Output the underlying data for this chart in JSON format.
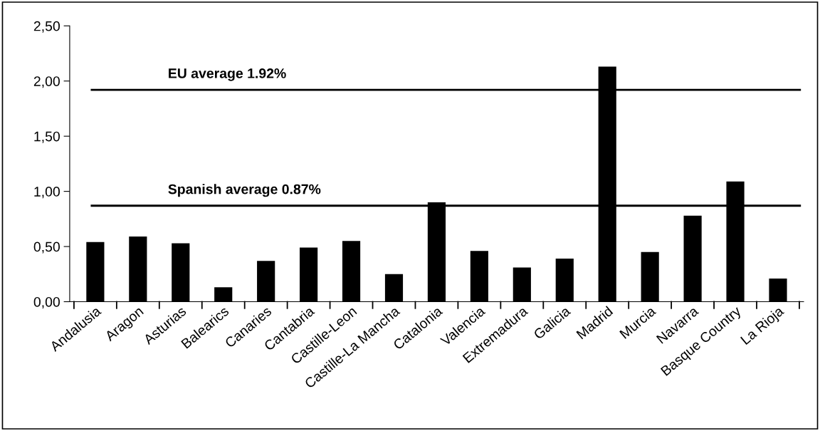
{
  "chart_data": {
    "type": "bar",
    "categories": [
      "Andalusia",
      "Aragon",
      "Asturias",
      "Balearics",
      "Canaries",
      "Cantabria",
      "Castille-Leon",
      "Castille-La Mancha",
      "Catalonia",
      "Valencia",
      "Extremadura",
      "Galicia",
      "Madrid",
      "Murcia",
      "Navarra",
      "Basque Country",
      "La Rioja"
    ],
    "values": [
      0.54,
      0.59,
      0.53,
      0.13,
      0.37,
      0.49,
      0.55,
      0.25,
      0.9,
      0.46,
      0.31,
      0.39,
      2.13,
      0.45,
      0.78,
      1.09,
      0.21
    ],
    "color": "#000000",
    "ylim": [
      0,
      2.5
    ],
    "yticks": [
      {
        "value": 0,
        "label": "0,00"
      },
      {
        "value": 0.5,
        "label": "0,50"
      },
      {
        "value": 1,
        "label": "1,00"
      },
      {
        "value": 1.5,
        "label": "1,50"
      },
      {
        "value": 2,
        "label": "2,00"
      },
      {
        "value": 2.5,
        "label": "2,50"
      }
    ],
    "ref_lines": [
      {
        "axis": "y",
        "value": 1.92,
        "label": "EU average 1.92%",
        "color": "#000000"
      },
      {
        "axis": "y",
        "value": 0.87,
        "label": "Spanish average 0.87%",
        "color": "#000000"
      }
    ],
    "grid": false,
    "legend": false
  }
}
